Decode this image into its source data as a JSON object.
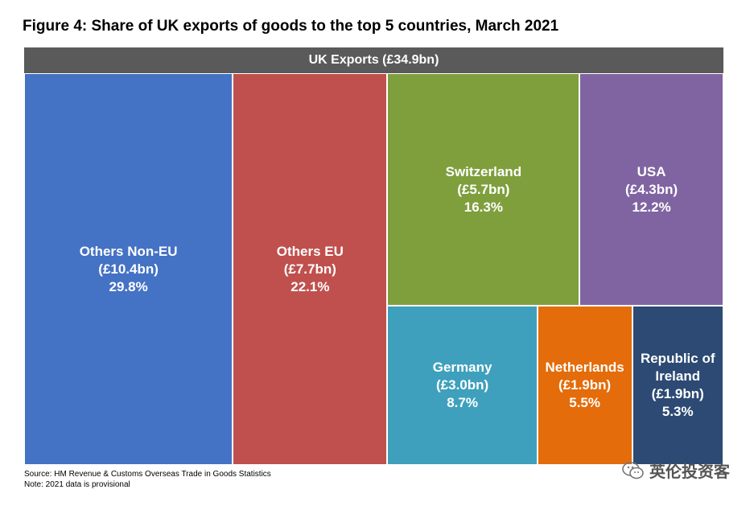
{
  "title": "Figure 4: Share of UK exports of goods to the top 5 countries, March 2021",
  "chart_data": {
    "type": "treemap",
    "header": "UK Exports (£34.9bn)",
    "total_bn": 34.9,
    "tiles": [
      {
        "name": "Others Non-EU",
        "value_label": "(£10.4bn)",
        "value": 10.4,
        "share_label": "29.8%",
        "share": 29.8,
        "color": "#4472c4"
      },
      {
        "name": "Others EU",
        "value_label": "(£7.7bn)",
        "value": 7.7,
        "share_label": "22.1%",
        "share": 22.1,
        "color": "#c0504d"
      },
      {
        "name": "Switzerland",
        "value_label": "(£5.7bn)",
        "value": 5.7,
        "share_label": "16.3%",
        "share": 16.3,
        "color": "#7f9f3d"
      },
      {
        "name": "USA",
        "value_label": "(£4.3bn)",
        "value": 4.3,
        "share_label": "12.2%",
        "share": 12.2,
        "color": "#8064a2"
      },
      {
        "name": "Germany",
        "value_label": "(£3.0bn)",
        "value": 3.0,
        "share_label": "8.7%",
        "share": 8.7,
        "color": "#3ea0bc"
      },
      {
        "name": "Netherlands",
        "value_label": "(£1.9bn)",
        "value": 1.9,
        "share_label": "5.5%",
        "share": 5.5,
        "color": "#e46c0a"
      },
      {
        "name": "Republic of Ireland",
        "value_label": "(£1.9bn)",
        "value": 1.9,
        "share_label": "5.3%",
        "share": 5.3,
        "color": "#2c4a73"
      }
    ]
  },
  "footer": {
    "source": "Source: HM Revenue & Customs Overseas Trade in Goods Statistics",
    "note": "Note: 2021 data is provisional"
  },
  "watermark": {
    "text": "英伦投资客",
    "icon": "wechat-icon"
  }
}
